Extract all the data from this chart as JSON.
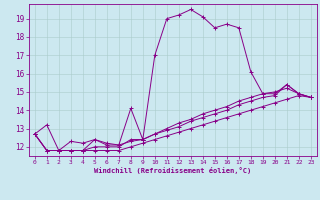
{
  "xlabel": "Windchill (Refroidissement éolien,°C)",
  "background_color": "#cce8f0",
  "line_color": "#880088",
  "grid_color": "#aacccc",
  "xlim": [
    -0.5,
    23.5
  ],
  "ylim": [
    11.5,
    19.8
  ],
  "yticks": [
    12,
    13,
    14,
    15,
    16,
    17,
    18,
    19
  ],
  "xticks": [
    0,
    1,
    2,
    3,
    4,
    5,
    6,
    7,
    8,
    9,
    10,
    11,
    12,
    13,
    14,
    15,
    16,
    17,
    18,
    19,
    20,
    21,
    22,
    23
  ],
  "series": [
    {
      "x": [
        0,
        1,
        2,
        3,
        4,
        5,
        6,
        7,
        8,
        9,
        10,
        11,
        12,
        13,
        14,
        15,
        16,
        17,
        18,
        19,
        20,
        21,
        22,
        23
      ],
      "y": [
        12.7,
        13.2,
        11.8,
        11.8,
        11.8,
        12.4,
        12.2,
        12.1,
        14.1,
        12.4,
        17.0,
        19.0,
        19.2,
        19.5,
        19.1,
        18.5,
        18.7,
        18.5,
        16.1,
        14.9,
        14.9,
        15.4,
        14.9,
        14.7
      ]
    },
    {
      "x": [
        0,
        1,
        2,
        3,
        4,
        5,
        6,
        7,
        8,
        9,
        10,
        11,
        12,
        13,
        14,
        15,
        16,
        17,
        18,
        19,
        20,
        21,
        22,
        23
      ],
      "y": [
        12.7,
        11.8,
        11.8,
        12.3,
        12.2,
        12.4,
        12.1,
        12.1,
        12.3,
        12.4,
        12.7,
        12.9,
        13.1,
        13.4,
        13.6,
        13.8,
        14.0,
        14.3,
        14.5,
        14.7,
        14.8,
        15.4,
        14.9,
        14.7
      ]
    },
    {
      "x": [
        0,
        1,
        2,
        3,
        4,
        5,
        6,
        7,
        8,
        9,
        10,
        11,
        12,
        13,
        14,
        15,
        16,
        17,
        18,
        19,
        20,
        21,
        22,
        23
      ],
      "y": [
        12.7,
        11.8,
        11.8,
        11.8,
        11.8,
        12.0,
        12.0,
        12.0,
        12.4,
        12.4,
        12.7,
        13.0,
        13.3,
        13.5,
        13.8,
        14.0,
        14.2,
        14.5,
        14.7,
        14.9,
        15.0,
        15.2,
        14.9,
        14.7
      ]
    },
    {
      "x": [
        0,
        1,
        2,
        3,
        4,
        5,
        6,
        7,
        8,
        9,
        10,
        11,
        12,
        13,
        14,
        15,
        16,
        17,
        18,
        19,
        20,
        21,
        22,
        23
      ],
      "y": [
        12.7,
        11.8,
        11.8,
        11.8,
        11.8,
        11.8,
        11.8,
        11.8,
        12.0,
        12.2,
        12.4,
        12.6,
        12.8,
        13.0,
        13.2,
        13.4,
        13.6,
        13.8,
        14.0,
        14.2,
        14.4,
        14.6,
        14.8,
        14.7
      ]
    }
  ]
}
